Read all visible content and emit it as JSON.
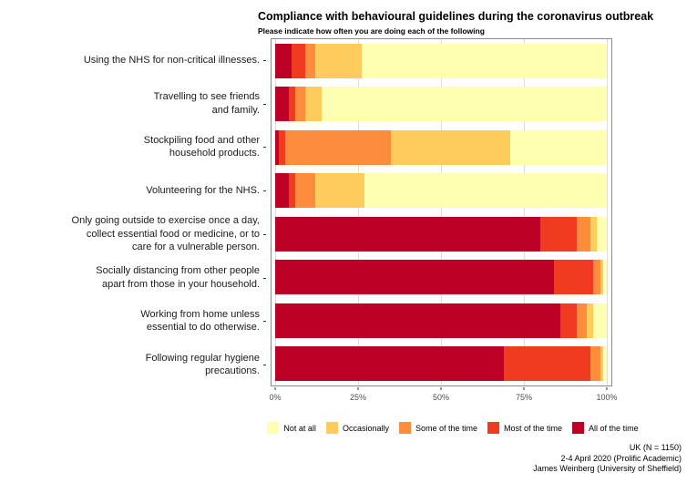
{
  "chart_data": {
    "type": "bar",
    "orientation": "horizontal",
    "stacked": true,
    "title": "Compliance with behavioural guidelines during the coronavirus outbreak",
    "subtitle": "Please indicate how often you are doing each of the following",
    "categories": [
      "Using the NHS for non-critical illnesses.",
      "Travelling to see friends\nand family.",
      "Stockpiling food and other\nhousehold products.",
      "Volunteering for the NHS.",
      "Only going outside to exercise once a day,\ncollect essential food or medicine, or to\ncare for a vulnerable person.",
      "Socially distancing from other people\napart from those in your household.",
      "Working from home unless\nessential to do otherwise.",
      "Following regular hygiene\nprecautions."
    ],
    "series": [
      {
        "name": "All of the time",
        "color": "#BD0026",
        "values": [
          5,
          4,
          1,
          4,
          80,
          84,
          86,
          69
        ]
      },
      {
        "name": "Most of the time",
        "color": "#F03B20",
        "values": [
          4,
          2,
          2,
          2,
          11,
          12,
          5,
          26
        ]
      },
      {
        "name": "Some of the time",
        "color": "#FD8D3C",
        "values": [
          3,
          3,
          32,
          6,
          4,
          2,
          3,
          3
        ]
      },
      {
        "name": "Occasionally",
        "color": "#FECC5C",
        "values": [
          14,
          5,
          36,
          15,
          2,
          1,
          2,
          1
        ]
      },
      {
        "name": "Not at all",
        "color": "#FFFFB2",
        "values": [
          74,
          86,
          29,
          73,
          3,
          1,
          4,
          1
        ]
      }
    ],
    "legend_order": [
      "Not at all",
      "Occasionally",
      "Some of the time",
      "Most of the time",
      "All of the time"
    ],
    "x_ticks": [
      {
        "pos": 0,
        "label": "0%"
      },
      {
        "pos": 25,
        "label": "25%"
      },
      {
        "pos": 50,
        "label": "50%"
      },
      {
        "pos": 75,
        "label": "75%"
      },
      {
        "pos": 100,
        "label": "100%"
      }
    ],
    "xlim": [
      0,
      100
    ],
    "caption_lines": [
      "UK (N = 1150)",
      "2-4 April 2020 (Prolific Academic)",
      "James Weinberg (University of Sheffield)"
    ]
  }
}
